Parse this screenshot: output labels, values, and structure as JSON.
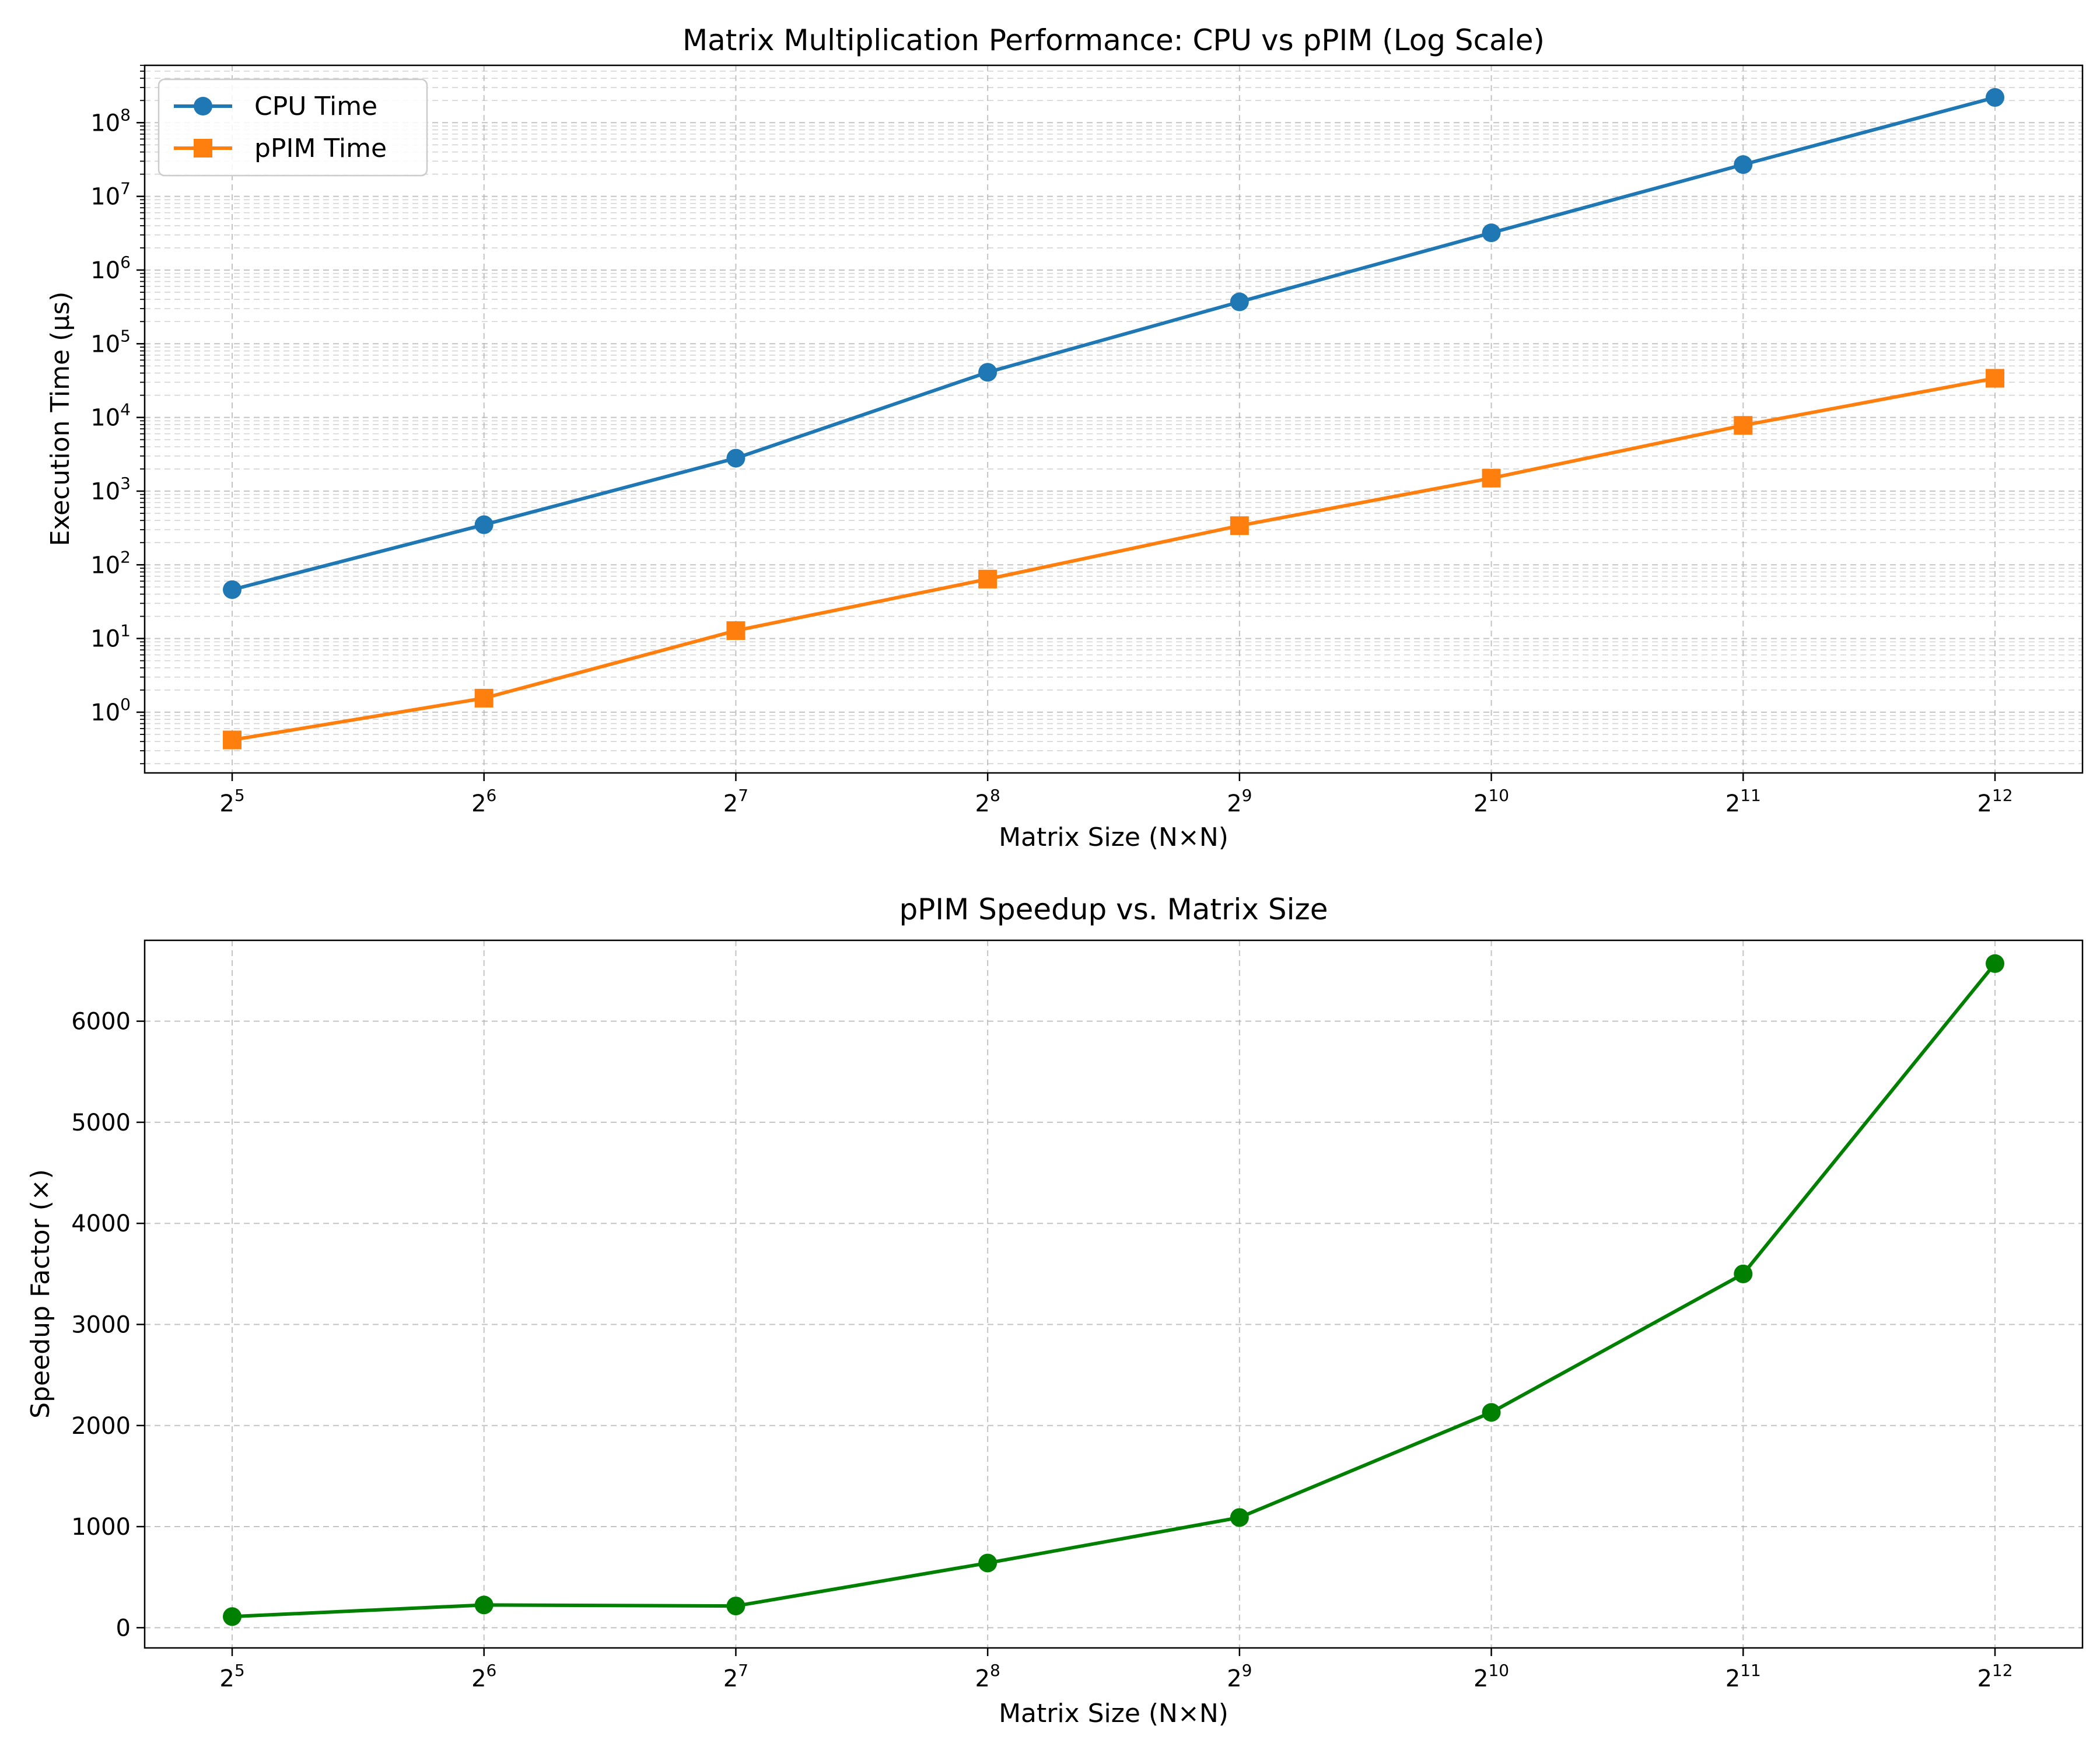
{
  "chart_data": [
    {
      "type": "line",
      "title": "Matrix Multiplication Performance: CPU vs pPIM (Log Scale)",
      "xlabel": "Matrix Size (N×N)",
      "ylabel": "Execution Time (μs)",
      "x_scale": "log2",
      "y_scale": "log10",
      "x": [
        32,
        64,
        128,
        256,
        512,
        1024,
        2048,
        4096
      ],
      "x_tick_base": "2",
      "x_tick_exponents": [
        "5",
        "6",
        "7",
        "8",
        "9",
        "10",
        "11",
        "12"
      ],
      "y_tick_base": "10",
      "y_tick_exponents": [
        "0",
        "1",
        "2",
        "3",
        "4",
        "5",
        "6",
        "7",
        "8"
      ],
      "ylim": [
        0.15,
        600000000
      ],
      "grid": "both",
      "legend_position": "top-left",
      "series": [
        {
          "name": "CPU Time",
          "color": "#1f77b4",
          "marker": "circle",
          "values": [
            46,
            350,
            2800,
            41000,
            370000,
            3200000,
            27000000,
            220000000
          ]
        },
        {
          "name": "pPIM Time",
          "color": "#ff7f0e",
          "marker": "square",
          "values": [
            0.42,
            1.55,
            12.8,
            64,
            340,
            1500,
            7800,
            34000
          ]
        }
      ]
    },
    {
      "type": "line",
      "title": "pPIM Speedup vs. Matrix Size",
      "xlabel": "Matrix Size (N×N)",
      "ylabel": "Speedup Factor (×)",
      "x_scale": "log2",
      "x": [
        32,
        64,
        128,
        256,
        512,
        1024,
        2048,
        4096
      ],
      "x_tick_base": "2",
      "x_tick_exponents": [
        "5",
        "6",
        "7",
        "8",
        "9",
        "10",
        "11",
        "12"
      ],
      "y_ticks": [
        "0",
        "1000",
        "2000",
        "3000",
        "4000",
        "5000",
        "6000"
      ],
      "ylim": [
        -200,
        6800
      ],
      "grid": "both",
      "series": [
        {
          "color": "#008000",
          "marker": "circle",
          "values": [
            110,
            225,
            215,
            640,
            1090,
            2130,
            3500,
            6570
          ]
        }
      ]
    }
  ]
}
